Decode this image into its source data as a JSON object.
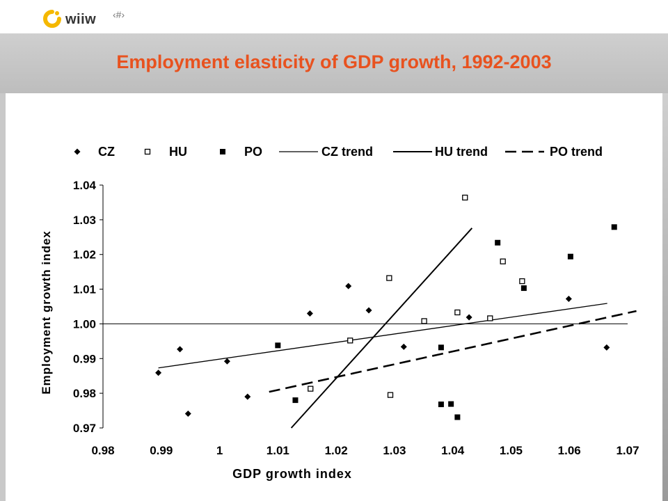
{
  "header": {
    "logo_text": "wiiw",
    "slide_number": "‹#›"
  },
  "page_title": "Employment elasticity of GDP growth, 1992-2003",
  "colors": {
    "title": "#e8521f",
    "logo_ring": "#f5b800"
  },
  "chart_data": {
    "type": "scatter",
    "xlabel": "GDP growth index",
    "ylabel": "Employment growth index",
    "xlim": [
      0.98,
      1.07
    ],
    "ylim": [
      0.97,
      1.04
    ],
    "x_ticks": [
      "0.98",
      "0.99",
      "1",
      "1.01",
      "1.02",
      "1.03",
      "1.04",
      "1.05",
      "1.06",
      "1.07"
    ],
    "y_ticks": [
      "0.97",
      "0.98",
      "0.99",
      "1.00",
      "1.01",
      "1.02",
      "1.03",
      "1.04"
    ],
    "reference_line_y": 1.0,
    "legend_position": "top",
    "series": [
      {
        "name": "CZ",
        "marker": "diamond",
        "points": [
          [
            0.9895,
            0.9859
          ],
          [
            0.9932,
            0.9927
          ],
          [
            0.9946,
            0.9741
          ],
          [
            1.0013,
            0.9892
          ],
          [
            1.0048,
            0.979
          ],
          [
            1.0155,
            1.003
          ],
          [
            1.0221,
            1.0109
          ],
          [
            1.0256,
            1.0039
          ],
          [
            1.0316,
            0.9934
          ],
          [
            1.0428,
            1.0019
          ],
          [
            1.0599,
            1.0072
          ],
          [
            1.0664,
            0.9932
          ]
        ]
      },
      {
        "name": "HU",
        "marker": "open-square",
        "points": [
          [
            1.0156,
            0.9813
          ],
          [
            1.0224,
            0.9952
          ],
          [
            1.0291,
            1.0132
          ],
          [
            1.0293,
            0.9795
          ],
          [
            1.0351,
            1.0008
          ],
          [
            1.0408,
            1.0033
          ],
          [
            1.0421,
            1.0364
          ],
          [
            1.0464,
            1.0016
          ],
          [
            1.0486,
            1.018
          ],
          [
            1.0519,
            1.0123
          ]
        ]
      },
      {
        "name": "PO",
        "marker": "filled-square",
        "points": [
          [
            1.01,
            0.9938
          ],
          [
            1.013,
            0.978
          ],
          [
            1.038,
            0.9932
          ],
          [
            1.038,
            0.9768
          ],
          [
            1.0397,
            0.9769
          ],
          [
            1.0408,
            0.9731
          ],
          [
            1.0477,
            1.0234
          ],
          [
            1.0522,
            1.0103
          ],
          [
            1.0602,
            1.0194
          ],
          [
            1.0677,
            1.0279
          ]
        ]
      }
    ],
    "trend_lines": [
      {
        "name": "CZ trend",
        "style": "thin-solid",
        "from": [
          0.9895,
          0.9873
        ],
        "to": [
          1.0665,
          1.0059
        ]
      },
      {
        "name": "HU trend",
        "style": "thick-solid",
        "from": [
          1.0123,
          0.97
        ],
        "to": [
          1.0433,
          1.0276
        ]
      },
      {
        "name": "PO trend",
        "style": "dashed",
        "from": [
          1.0085,
          0.9804
        ],
        "to": [
          1.0715,
          1.0037
        ]
      }
    ]
  }
}
